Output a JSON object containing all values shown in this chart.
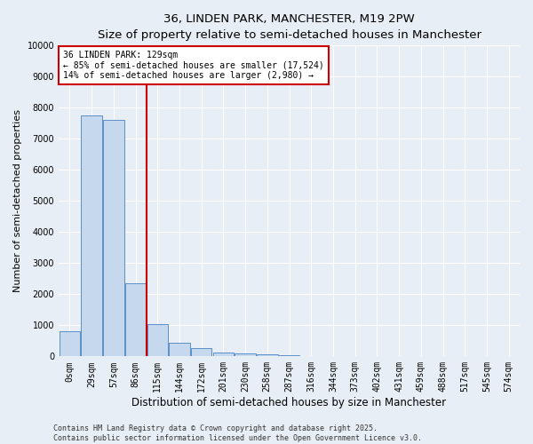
{
  "title": "36, LINDEN PARK, MANCHESTER, M19 2PW",
  "subtitle": "Size of property relative to semi-detached houses in Manchester",
  "xlabel": "Distribution of semi-detached houses by size in Manchester",
  "ylabel": "Number of semi-detached properties",
  "categories": [
    "0sqm",
    "29sqm",
    "57sqm",
    "86sqm",
    "115sqm",
    "144sqm",
    "172sqm",
    "201sqm",
    "230sqm",
    "258sqm",
    "287sqm",
    "316sqm",
    "344sqm",
    "373sqm",
    "402sqm",
    "431sqm",
    "459sqm",
    "488sqm",
    "517sqm",
    "545sqm",
    "574sqm"
  ],
  "bar_values": [
    800,
    7750,
    7600,
    2350,
    1050,
    450,
    280,
    130,
    100,
    70,
    30,
    20,
    10,
    5,
    3,
    2,
    2,
    2,
    1,
    1,
    0
  ],
  "bar_color": "#c5d8ee",
  "bar_edge_color": "#5b8fc7",
  "property_bin_index": 3.5,
  "annotation_title": "36 LINDEN PARK: 129sqm",
  "annotation_line1": "← 85% of semi-detached houses are smaller (17,524)",
  "annotation_line2": "14% of semi-detached houses are larger (2,980) →",
  "annotation_box_facecolor": "#ffffff",
  "annotation_box_edgecolor": "#cc0000",
  "vline_color": "#cc0000",
  "ylim": [
    0,
    10000
  ],
  "yticks": [
    0,
    1000,
    2000,
    3000,
    4000,
    5000,
    6000,
    7000,
    8000,
    9000,
    10000
  ],
  "footer_line1": "Contains HM Land Registry data © Crown copyright and database right 2025.",
  "footer_line2": "Contains public sector information licensed under the Open Government Licence v3.0.",
  "bg_color": "#e8eef5",
  "grid_color": "#ffffff",
  "title_fontsize": 9.5,
  "subtitle_fontsize": 8.5,
  "ylabel_fontsize": 8,
  "xlabel_fontsize": 8.5,
  "tick_fontsize": 7,
  "footer_fontsize": 6,
  "annotation_fontsize": 7
}
